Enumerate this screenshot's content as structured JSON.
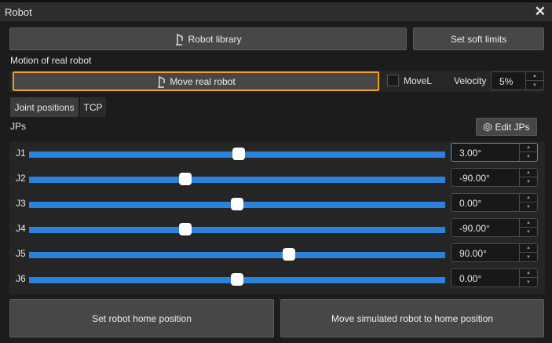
{
  "window": {
    "title": "Robot"
  },
  "toolbar": {
    "robot_library": "Robot library",
    "set_soft_limits": "Set soft limits"
  },
  "motion": {
    "section_label": "Motion of real robot",
    "move_real_robot": "Move real robot",
    "movel_label": "MoveL",
    "movel_checked": false,
    "velocity_label": "Velocity",
    "velocity_value": "5%"
  },
  "tabs": [
    {
      "label": "Joint positions",
      "active": true
    },
    {
      "label": "TCP",
      "active": false
    }
  ],
  "jps": {
    "label": "JPs",
    "edit_button": "Edit JPs",
    "joints": [
      {
        "name": "J1",
        "value": 3.0,
        "display": "3.00°"
      },
      {
        "name": "J2",
        "value": -90.0,
        "display": "-90.00°"
      },
      {
        "name": "J3",
        "value": 0.0,
        "display": "0.00°"
      },
      {
        "name": "J4",
        "value": -90.0,
        "display": "-90.00°"
      },
      {
        "name": "J5",
        "value": 90.0,
        "display": "90.00°"
      },
      {
        "name": "J6",
        "value": 0.0,
        "display": "0.00°"
      }
    ]
  },
  "footer": {
    "set_home": "Set robot home position",
    "move_home": "Move simulated robot to home position"
  },
  "colors": {
    "accent": "#2a82da",
    "focus_border": "#f0a020"
  }
}
